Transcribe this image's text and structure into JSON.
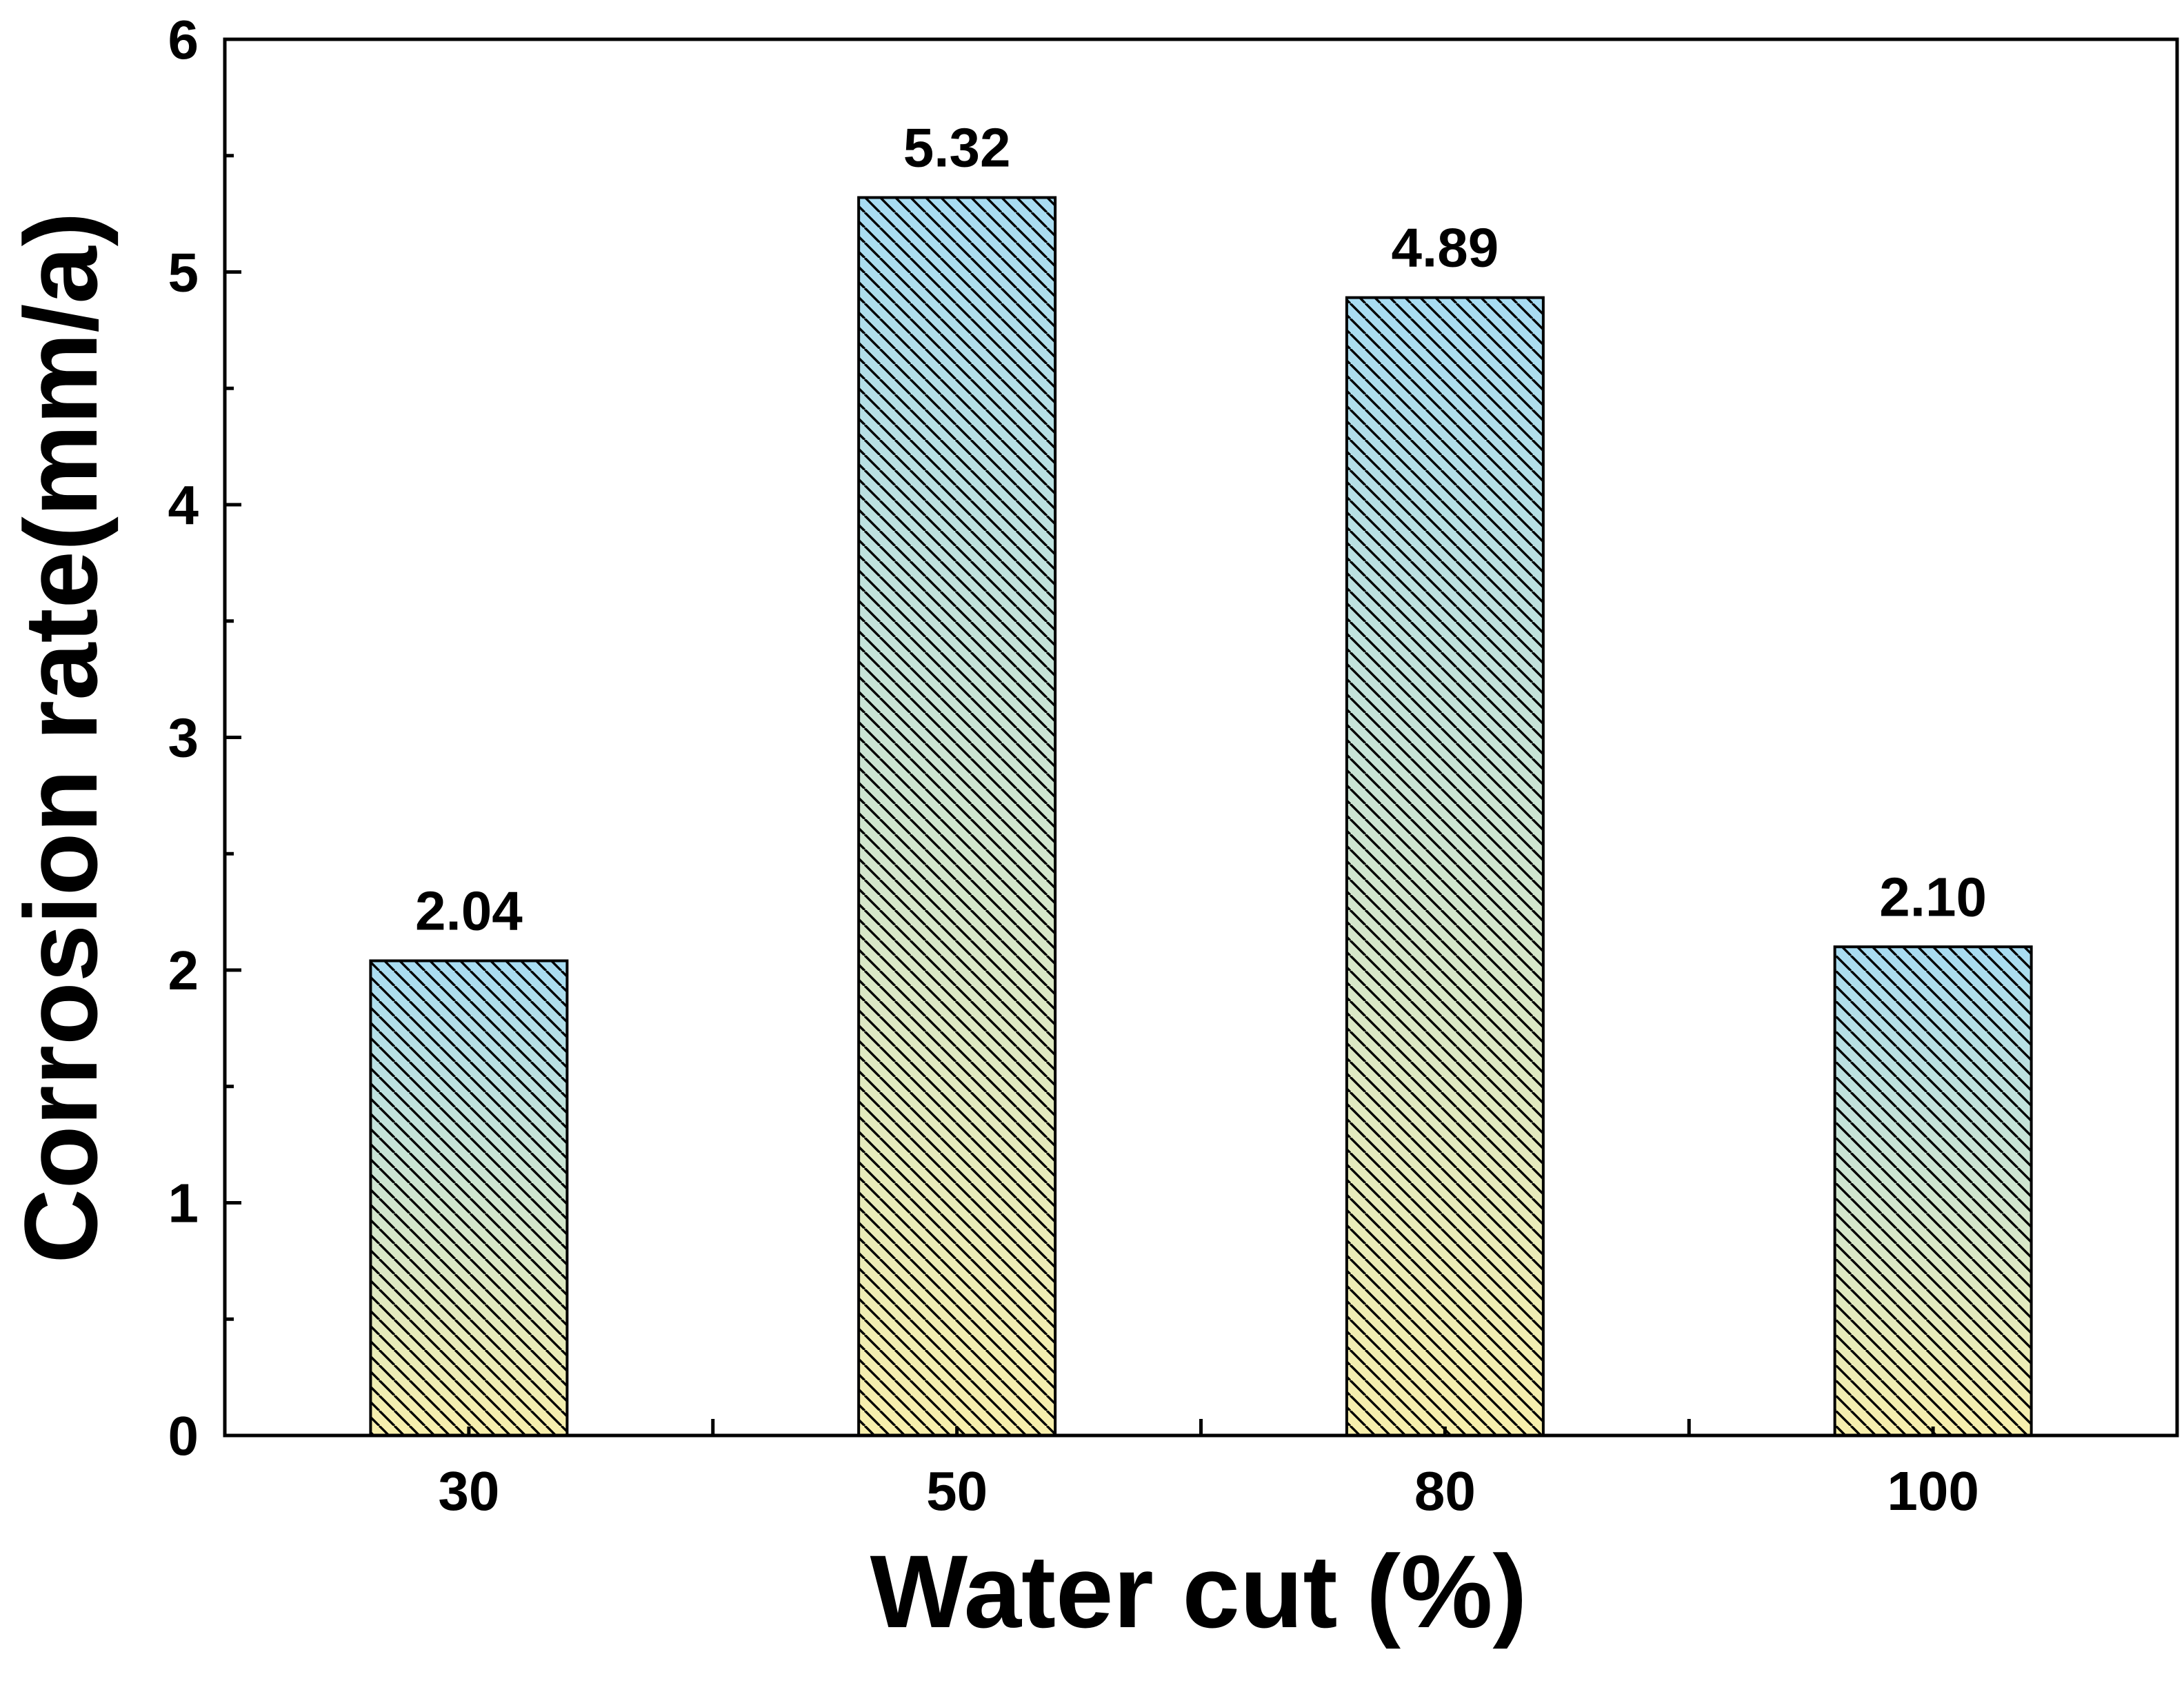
{
  "chart_data": {
    "type": "bar",
    "categories": [
      "30",
      "50",
      "80",
      "100"
    ],
    "values": [
      2.04,
      5.32,
      4.89,
      2.1
    ],
    "value_labels": [
      "2.04",
      "5.32",
      "4.89",
      "2.10"
    ],
    "title": "",
    "xlabel": "Water cut (%)",
    "ylabel": "Corrosion rate(mm/a)",
    "ylim": [
      0,
      6
    ],
    "yticks": [
      0,
      1,
      2,
      3,
      4,
      5,
      6
    ],
    "ytick_labels": [
      "0",
      "1",
      "2",
      "3",
      "4",
      "5",
      "6"
    ],
    "y_minor_step": 0.5,
    "grid": false,
    "bar_fill": {
      "gradient_top": "#a8dcf2",
      "gradient_bottom": "#f8efac",
      "hatch_color": "#000000",
      "hatch": "diagonal"
    }
  }
}
